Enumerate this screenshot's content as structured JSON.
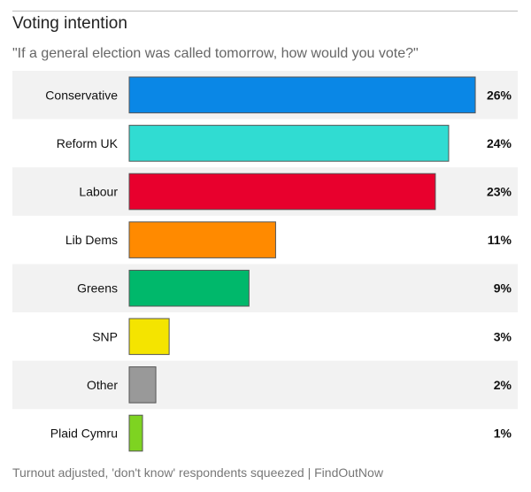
{
  "chart_data": {
    "type": "bar",
    "orientation": "horizontal",
    "title": "Voting intention",
    "subtitle": "\"If a general election was called tomorrow, how would you vote?\"",
    "categories": [
      "Conservative",
      "Reform UK",
      "Labour",
      "Lib Dems",
      "Greens",
      "SNP",
      "Other",
      "Plaid Cymru"
    ],
    "values": [
      26,
      24,
      23,
      11,
      9,
      3,
      2,
      1
    ],
    "value_labels": [
      "26%",
      "24%",
      "23%",
      "11%",
      "9%",
      "3%",
      "2%",
      "1%"
    ],
    "colors": [
      "#0a87e6",
      "#30dcd2",
      "#e8002d",
      "#ff8a00",
      "#00b86b",
      "#f4e400",
      "#999999",
      "#7ed321"
    ],
    "unit": "%",
    "grid": false,
    "row_shading": "#f2f2f2",
    "footer": "Turnout adjusted, 'don't know' respondents squeezed  | FindOutNow"
  }
}
